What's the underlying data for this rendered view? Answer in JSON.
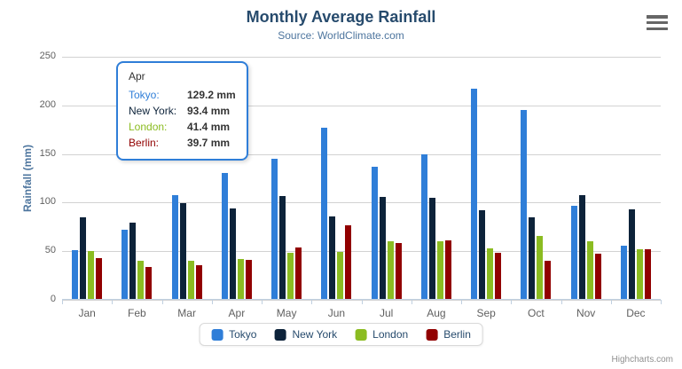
{
  "chart_data": {
    "type": "bar",
    "title": "Monthly Average Rainfall",
    "subtitle": "Source: WorldClimate.com",
    "categories": [
      "Jan",
      "Feb",
      "Mar",
      "Apr",
      "May",
      "Jun",
      "Jul",
      "Aug",
      "Sep",
      "Oct",
      "Nov",
      "Dec"
    ],
    "series": [
      {
        "name": "Tokyo",
        "color": "#2f7ed8",
        "values": [
          49.9,
          71.5,
          106.4,
          129.2,
          144.0,
          176.0,
          135.6,
          148.5,
          216.4,
          194.1,
          95.6,
          54.4
        ]
      },
      {
        "name": "New York",
        "color": "#0d233a",
        "values": [
          83.6,
          78.8,
          98.5,
          93.4,
          106.0,
          84.5,
          105.0,
          104.3,
          91.2,
          83.5,
          106.6,
          92.3
        ]
      },
      {
        "name": "London",
        "color": "#8bbc21",
        "values": [
          48.9,
          38.8,
          39.3,
          41.4,
          47.0,
          48.3,
          59.0,
          59.6,
          52.4,
          65.2,
          59.3,
          51.2
        ]
      },
      {
        "name": "Berlin",
        "color": "#910000",
        "values": [
          42.4,
          33.2,
          34.5,
          39.7,
          52.6,
          75.5,
          57.4,
          60.4,
          47.6,
          39.1,
          46.8,
          51.1
        ]
      }
    ],
    "xlabel": "",
    "ylabel": "Rainfall (mm)",
    "ylim": [
      0,
      250
    ],
    "yticks": [
      0,
      50,
      100,
      150,
      200,
      250
    ],
    "grid": true,
    "legend_position": "bottom"
  },
  "tooltip": {
    "category": "Apr",
    "rows": [
      {
        "name": "Tokyo:",
        "value": "129.2 mm",
        "color": "#2f7ed8"
      },
      {
        "name": "New York:",
        "value": "93.4 mm",
        "color": "#0d233a"
      },
      {
        "name": "London:",
        "value": "41.4 mm",
        "color": "#8bbc21"
      },
      {
        "name": "Berlin:",
        "value": "39.7 mm",
        "color": "#910000"
      }
    ]
  },
  "credits": {
    "label": "Highcharts.com"
  },
  "icons": {
    "export_menu": "hamburger-menu-icon"
  },
  "colors": {
    "title": "#274b6d",
    "subtitle": "#4d759e",
    "axis_label": "#606060",
    "axis_line": "#c0d0e0",
    "gridline": "#d2d2d2",
    "legend_text": "#274b6d",
    "tooltip_border": "#2f7ed8"
  }
}
